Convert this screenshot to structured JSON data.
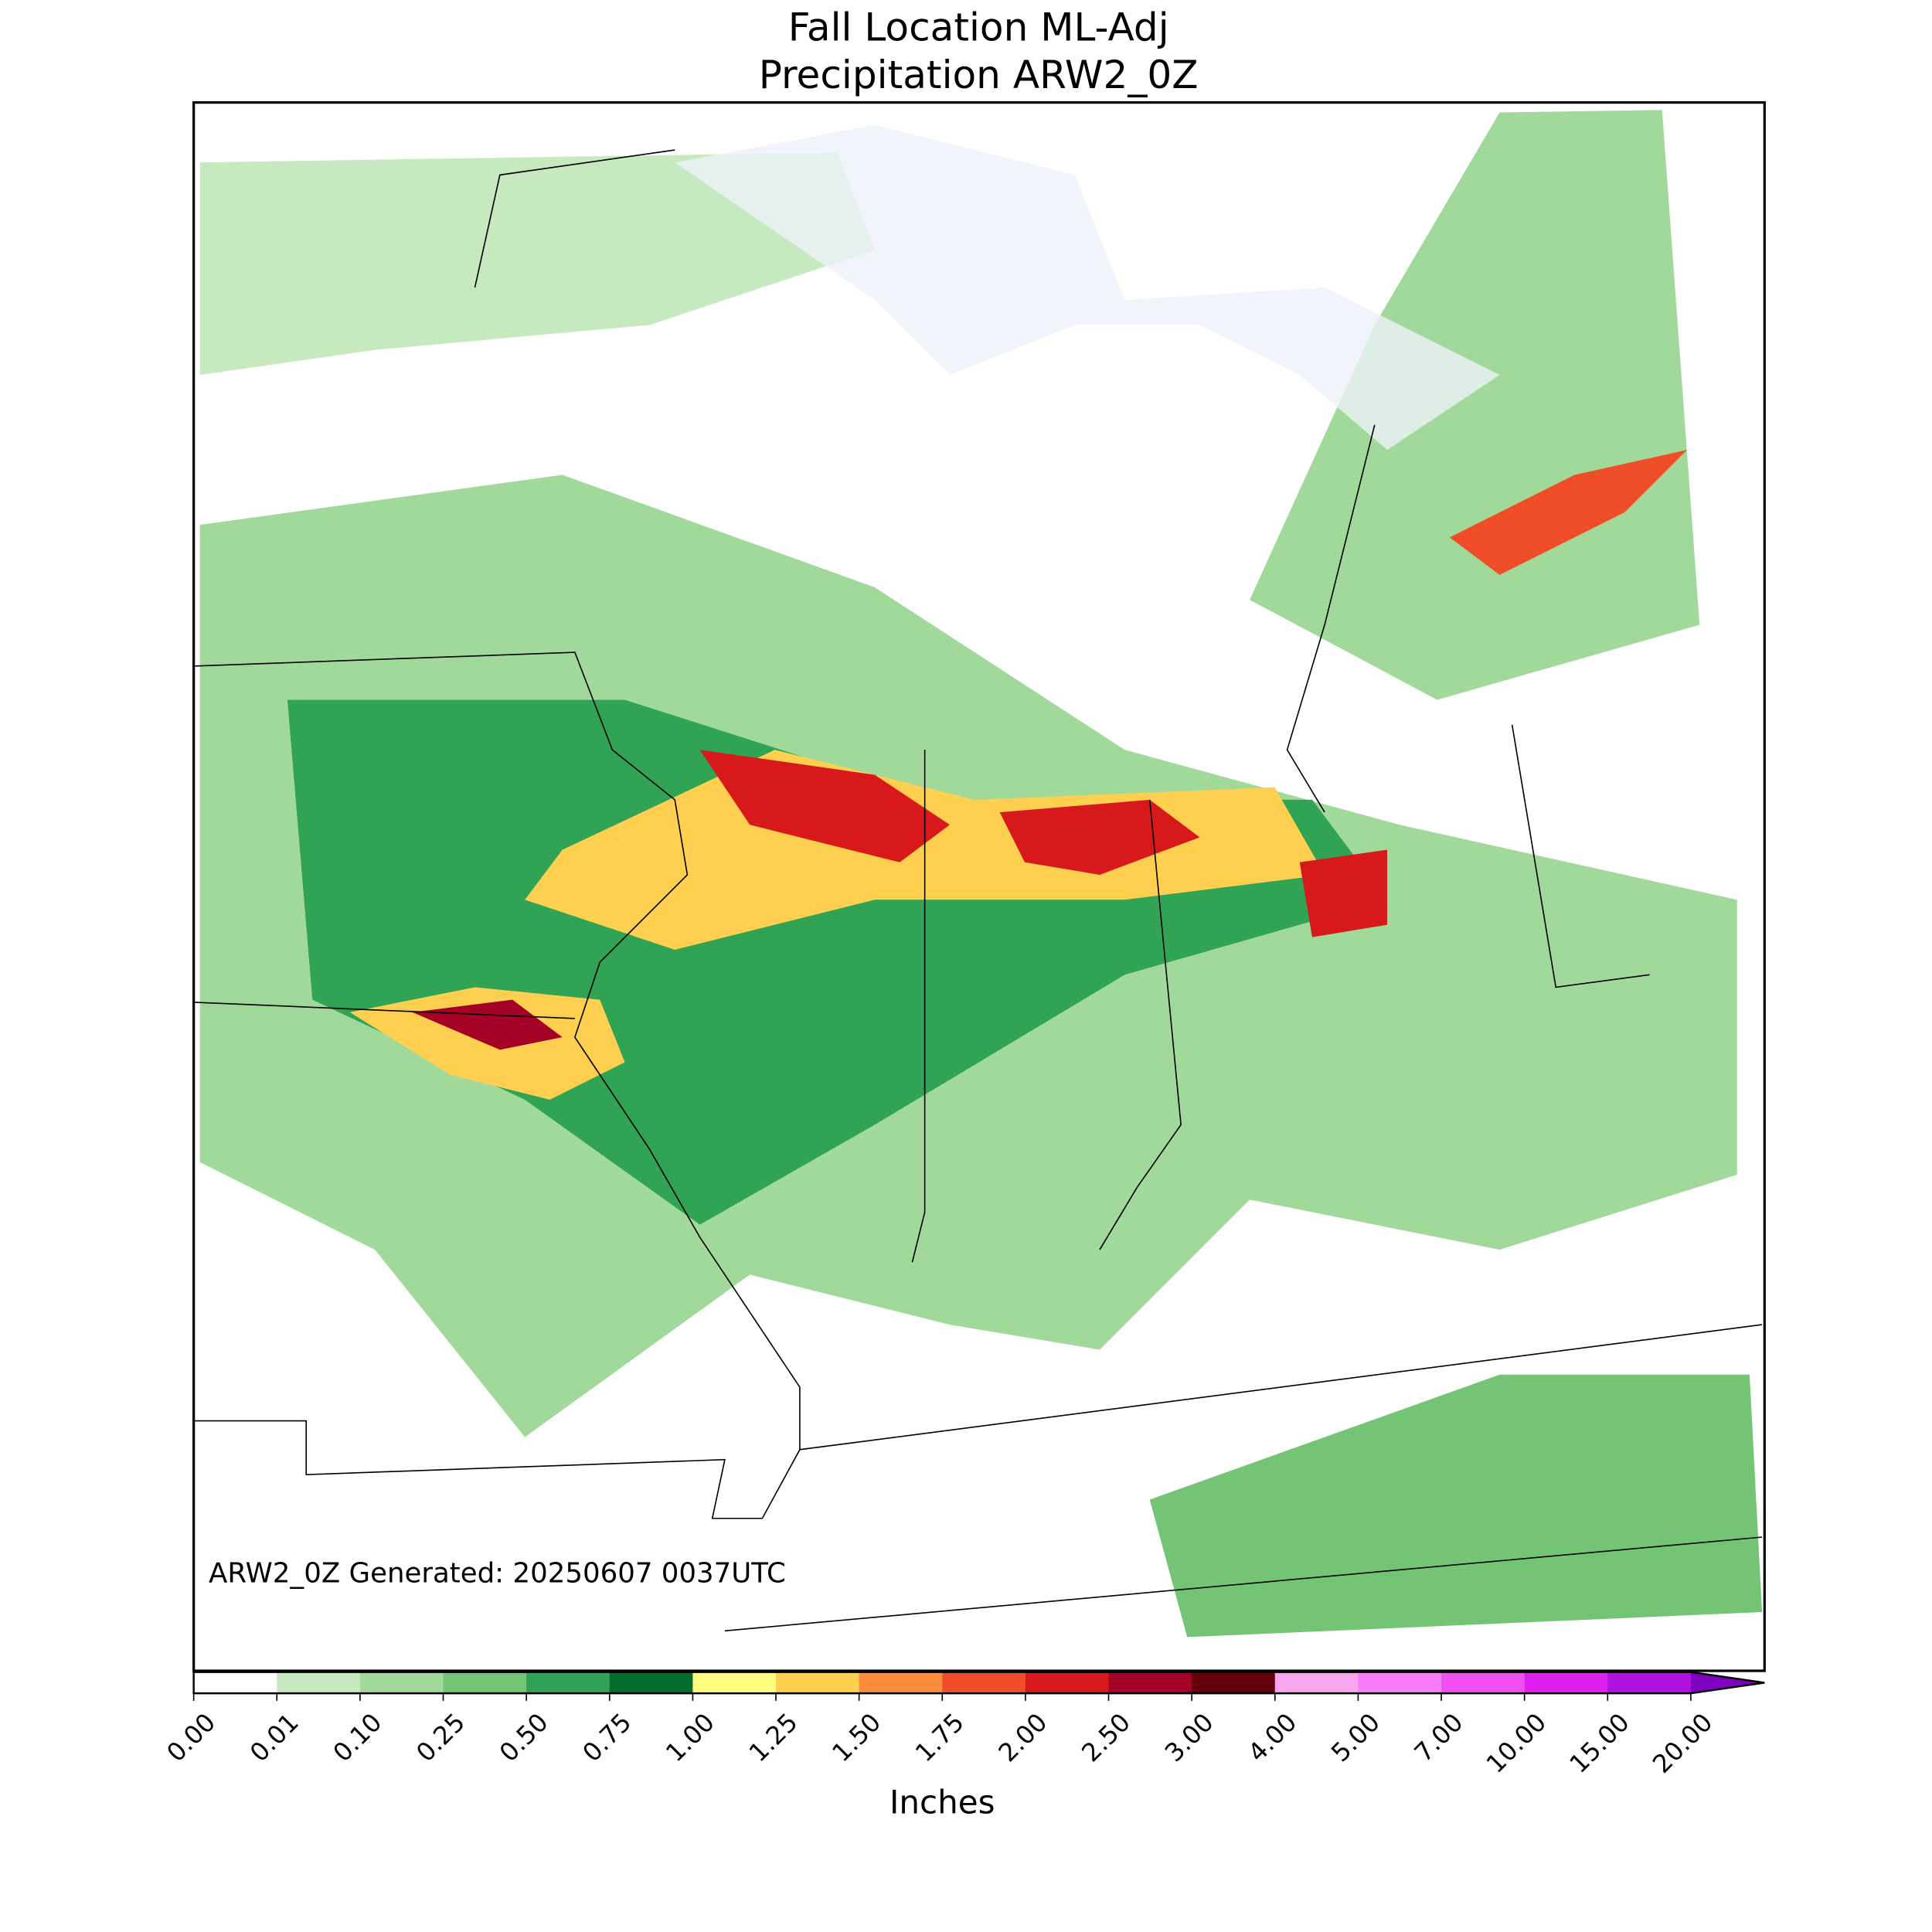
{
  "title": [
    "Fall Location ML-Adj",
    "Precipitation ARW2_0Z"
  ],
  "annotation": "ARW2_0Z Generated: 20250607 0037UTC",
  "colorbar": {
    "label": "Inches",
    "ticks": [
      {
        "value": 0,
        "label": "0.00"
      },
      {
        "value": 0.01,
        "label": "0.01"
      },
      {
        "value": 0.1,
        "label": "0.10"
      },
      {
        "value": 0.25,
        "label": "0.25"
      },
      {
        "value": 0.5,
        "label": "0.50"
      },
      {
        "value": 0.75,
        "label": "0.75"
      },
      {
        "value": 1,
        "label": "1.00"
      },
      {
        "value": 1.25,
        "label": "1.25"
      },
      {
        "value": 1.5,
        "label": "1.50"
      },
      {
        "value": 1.75,
        "label": "1.75"
      },
      {
        "value": 2,
        "label": "2.00"
      },
      {
        "value": 2.5,
        "label": "2.50"
      },
      {
        "value": 3,
        "label": "3.00"
      },
      {
        "value": 4,
        "label": "4.00"
      },
      {
        "value": 5,
        "label": "5.00"
      },
      {
        "value": 7,
        "label": "7.00"
      },
      {
        "value": 10,
        "label": "10.00"
      },
      {
        "value": 15,
        "label": "15.00"
      },
      {
        "value": 20,
        "label": "20.00"
      }
    ],
    "colors": [
      "#ffffff",
      "#c7e9c0",
      "#a1d99b",
      "#74c476",
      "#31a354",
      "#006d2c",
      "#ffff80",
      "#ffd050",
      "#fd8d3c",
      "#f04e28",
      "#d7191c",
      "#a50026",
      "#67000d",
      "#f9a6f0",
      "#f77ef7",
      "#f050f0",
      "#e020f0",
      "#b010e0"
    ],
    "extend_color": "#8000c0"
  }
}
